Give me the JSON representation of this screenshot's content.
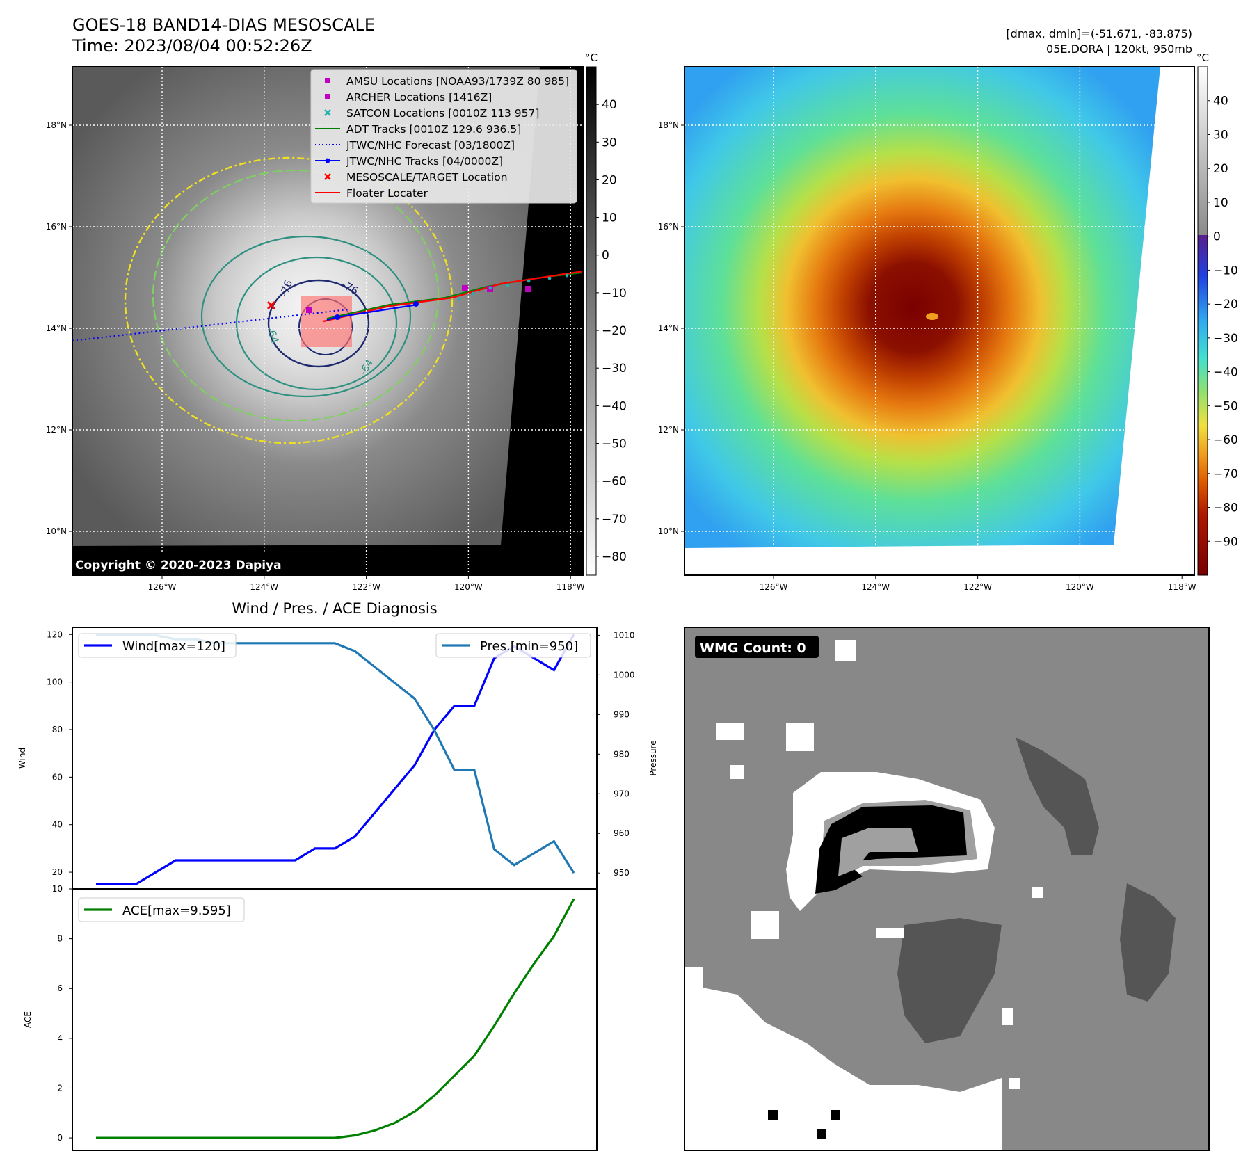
{
  "header": {
    "title": "GOES-18 BAND14-DIAS MESOSCALE",
    "time": "Time: 2023/08/04 00:52:26Z",
    "dmax_dmin": "[dmax, dmin]=(-51.671, -83.875)",
    "storm": "05E.DORA | 120kt, 950mb"
  },
  "copyright": "Copyright © 2020-2023 Dapiya",
  "colorbar_unit": "°C",
  "map": {
    "lon_ticks": [
      "126°W",
      "124°W",
      "122°W",
      "120°W",
      "118°W"
    ],
    "lat_ticks": [
      "18°N",
      "16°N",
      "14°N",
      "12°N",
      "10°N"
    ],
    "contour_labels": [
      "-76",
      "-76",
      "-64",
      "-64"
    ],
    "legend": [
      {
        "label": "AMSU Locations [NOAA93/1739Z 80 985]",
        "color": "#c000c0",
        "marker": "square"
      },
      {
        "label": "ARCHER Locations [1416Z]",
        "color": "#c000c0",
        "marker": "square"
      },
      {
        "label": "SATCON Locations [0010Z 113 957]",
        "color": "#20b0b0",
        "marker": "x"
      },
      {
        "label": "ADT Tracks [0010Z 129.6 936.5]",
        "color": "#008000",
        "marker": "line"
      },
      {
        "label": "JTWC/NHC Forecast [03/1800Z]",
        "color": "#0000ff",
        "marker": "dotted"
      },
      {
        "label": "JTWC/NHC Tracks [04/0000Z]",
        "color": "#0000ff",
        "marker": "line-dot"
      },
      {
        "label": "MESOSCALE/TARGET Location",
        "color": "#ff0000",
        "marker": "x"
      },
      {
        "label": "Floater Locater",
        "color": "#ff0000",
        "marker": "line"
      }
    ]
  },
  "cbar_gray": {
    "ticks": [
      "40",
      "30",
      "20",
      "10",
      "0",
      "−10",
      "−20",
      "−30",
      "−40",
      "−50",
      "−60",
      "−70",
      "−80"
    ],
    "values": [
      40,
      30,
      20,
      10,
      0,
      -10,
      -20,
      -30,
      -40,
      -50,
      -60,
      -70,
      -80
    ],
    "vmin": -85,
    "vmax": 50
  },
  "cbar_color": {
    "ticks": [
      "40",
      "30",
      "20",
      "10",
      "0",
      "−10",
      "−20",
      "−30",
      "−40",
      "−50",
      "−60",
      "−70",
      "−80",
      "−90"
    ],
    "values": [
      40,
      30,
      20,
      10,
      0,
      -10,
      -20,
      -30,
      -40,
      -50,
      -60,
      -70,
      -80,
      -90
    ],
    "vmin": -100,
    "vmax": 50
  },
  "chart_data": [
    {
      "type": "line",
      "title": "Wind / Pres. / ACE Diagnosis",
      "ylabel": "Wind",
      "y2label": "Pressure",
      "ylim": [
        13,
        123
      ],
      "y2lim": [
        946,
        1012
      ],
      "yticks": [
        20,
        40,
        60,
        80,
        100,
        120
      ],
      "y2ticks": [
        950,
        960,
        970,
        980,
        990,
        1000,
        1010
      ],
      "series": [
        {
          "name": "Wind[max=120]",
          "color": "#0000ff",
          "values": [
            15,
            15,
            15,
            20,
            25,
            25,
            25,
            25,
            25,
            25,
            25,
            30,
            30,
            35,
            45,
            55,
            65,
            80,
            90,
            90,
            110,
            115,
            110,
            105,
            120
          ]
        },
        {
          "name": "Pres.[min=950]",
          "color": "#1f77b4",
          "axis": "right",
          "values": [
            1010,
            1010,
            1010,
            1010,
            1009,
            1009,
            1008,
            1008,
            1008,
            1008,
            1008,
            1008,
            1008,
            1006,
            1002,
            998,
            994,
            986,
            976,
            976,
            956,
            952,
            955,
            958,
            950
          ]
        }
      ]
    },
    {
      "type": "line",
      "ylabel": "ACE",
      "ylim": [
        -0.5,
        10
      ],
      "yticks": [
        0,
        2,
        4,
        6,
        8,
        10
      ],
      "series": [
        {
          "name": "ACE[max=9.595]",
          "color": "#008000",
          "values": [
            0,
            0,
            0,
            0,
            0,
            0,
            0,
            0,
            0,
            0,
            0,
            0,
            0,
            0.1,
            0.3,
            0.6,
            1.05,
            1.7,
            2.5,
            3.3,
            4.5,
            5.8,
            7.0,
            8.1,
            9.595
          ]
        }
      ]
    }
  ],
  "wmg": {
    "label": "WMG Count: 0"
  }
}
